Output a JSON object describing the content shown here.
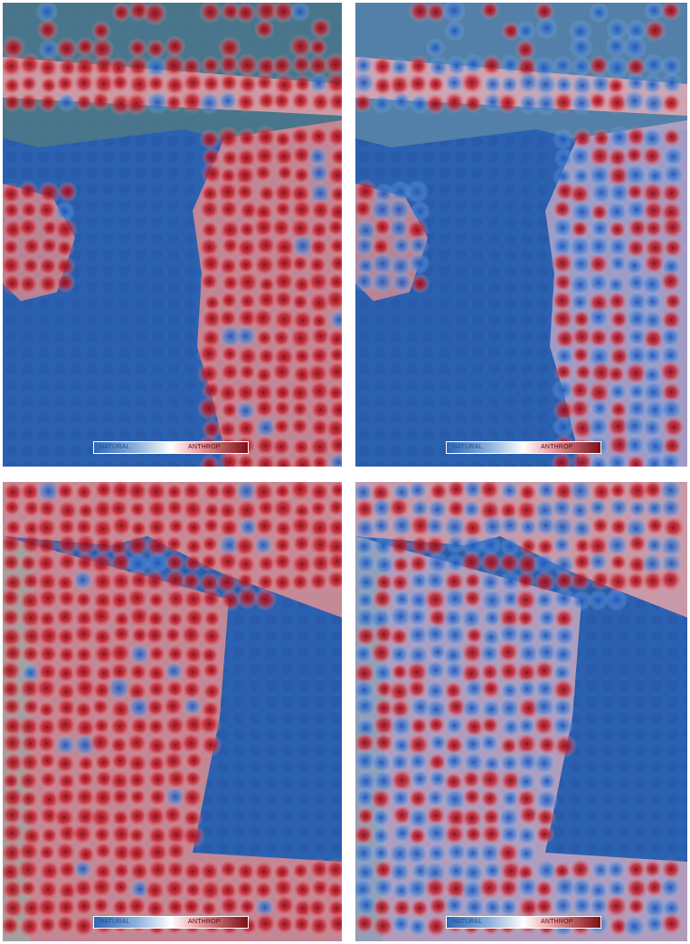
{
  "figure": {
    "panels": [
      {
        "id": "top-left",
        "scene": "harbor-north",
        "variant": "dense"
      },
      {
        "id": "top-right",
        "scene": "harbor-north",
        "variant": "sparse"
      },
      {
        "id": "bottom-left",
        "scene": "harbor-south",
        "variant": "dense"
      },
      {
        "id": "bottom-right",
        "scene": "harbor-south",
        "variant": "sparse"
      }
    ],
    "legend": {
      "low_label": "NATURAL",
      "high_label": "ANTHROP",
      "colors": {
        "low": "#2f67b6",
        "mid": "#ffffff",
        "high": "#7d0e14"
      }
    },
    "colors": {
      "water": "#2a5fae",
      "heat_red": "#c1121f",
      "heat_blue": "#2c6fd1"
    }
  }
}
